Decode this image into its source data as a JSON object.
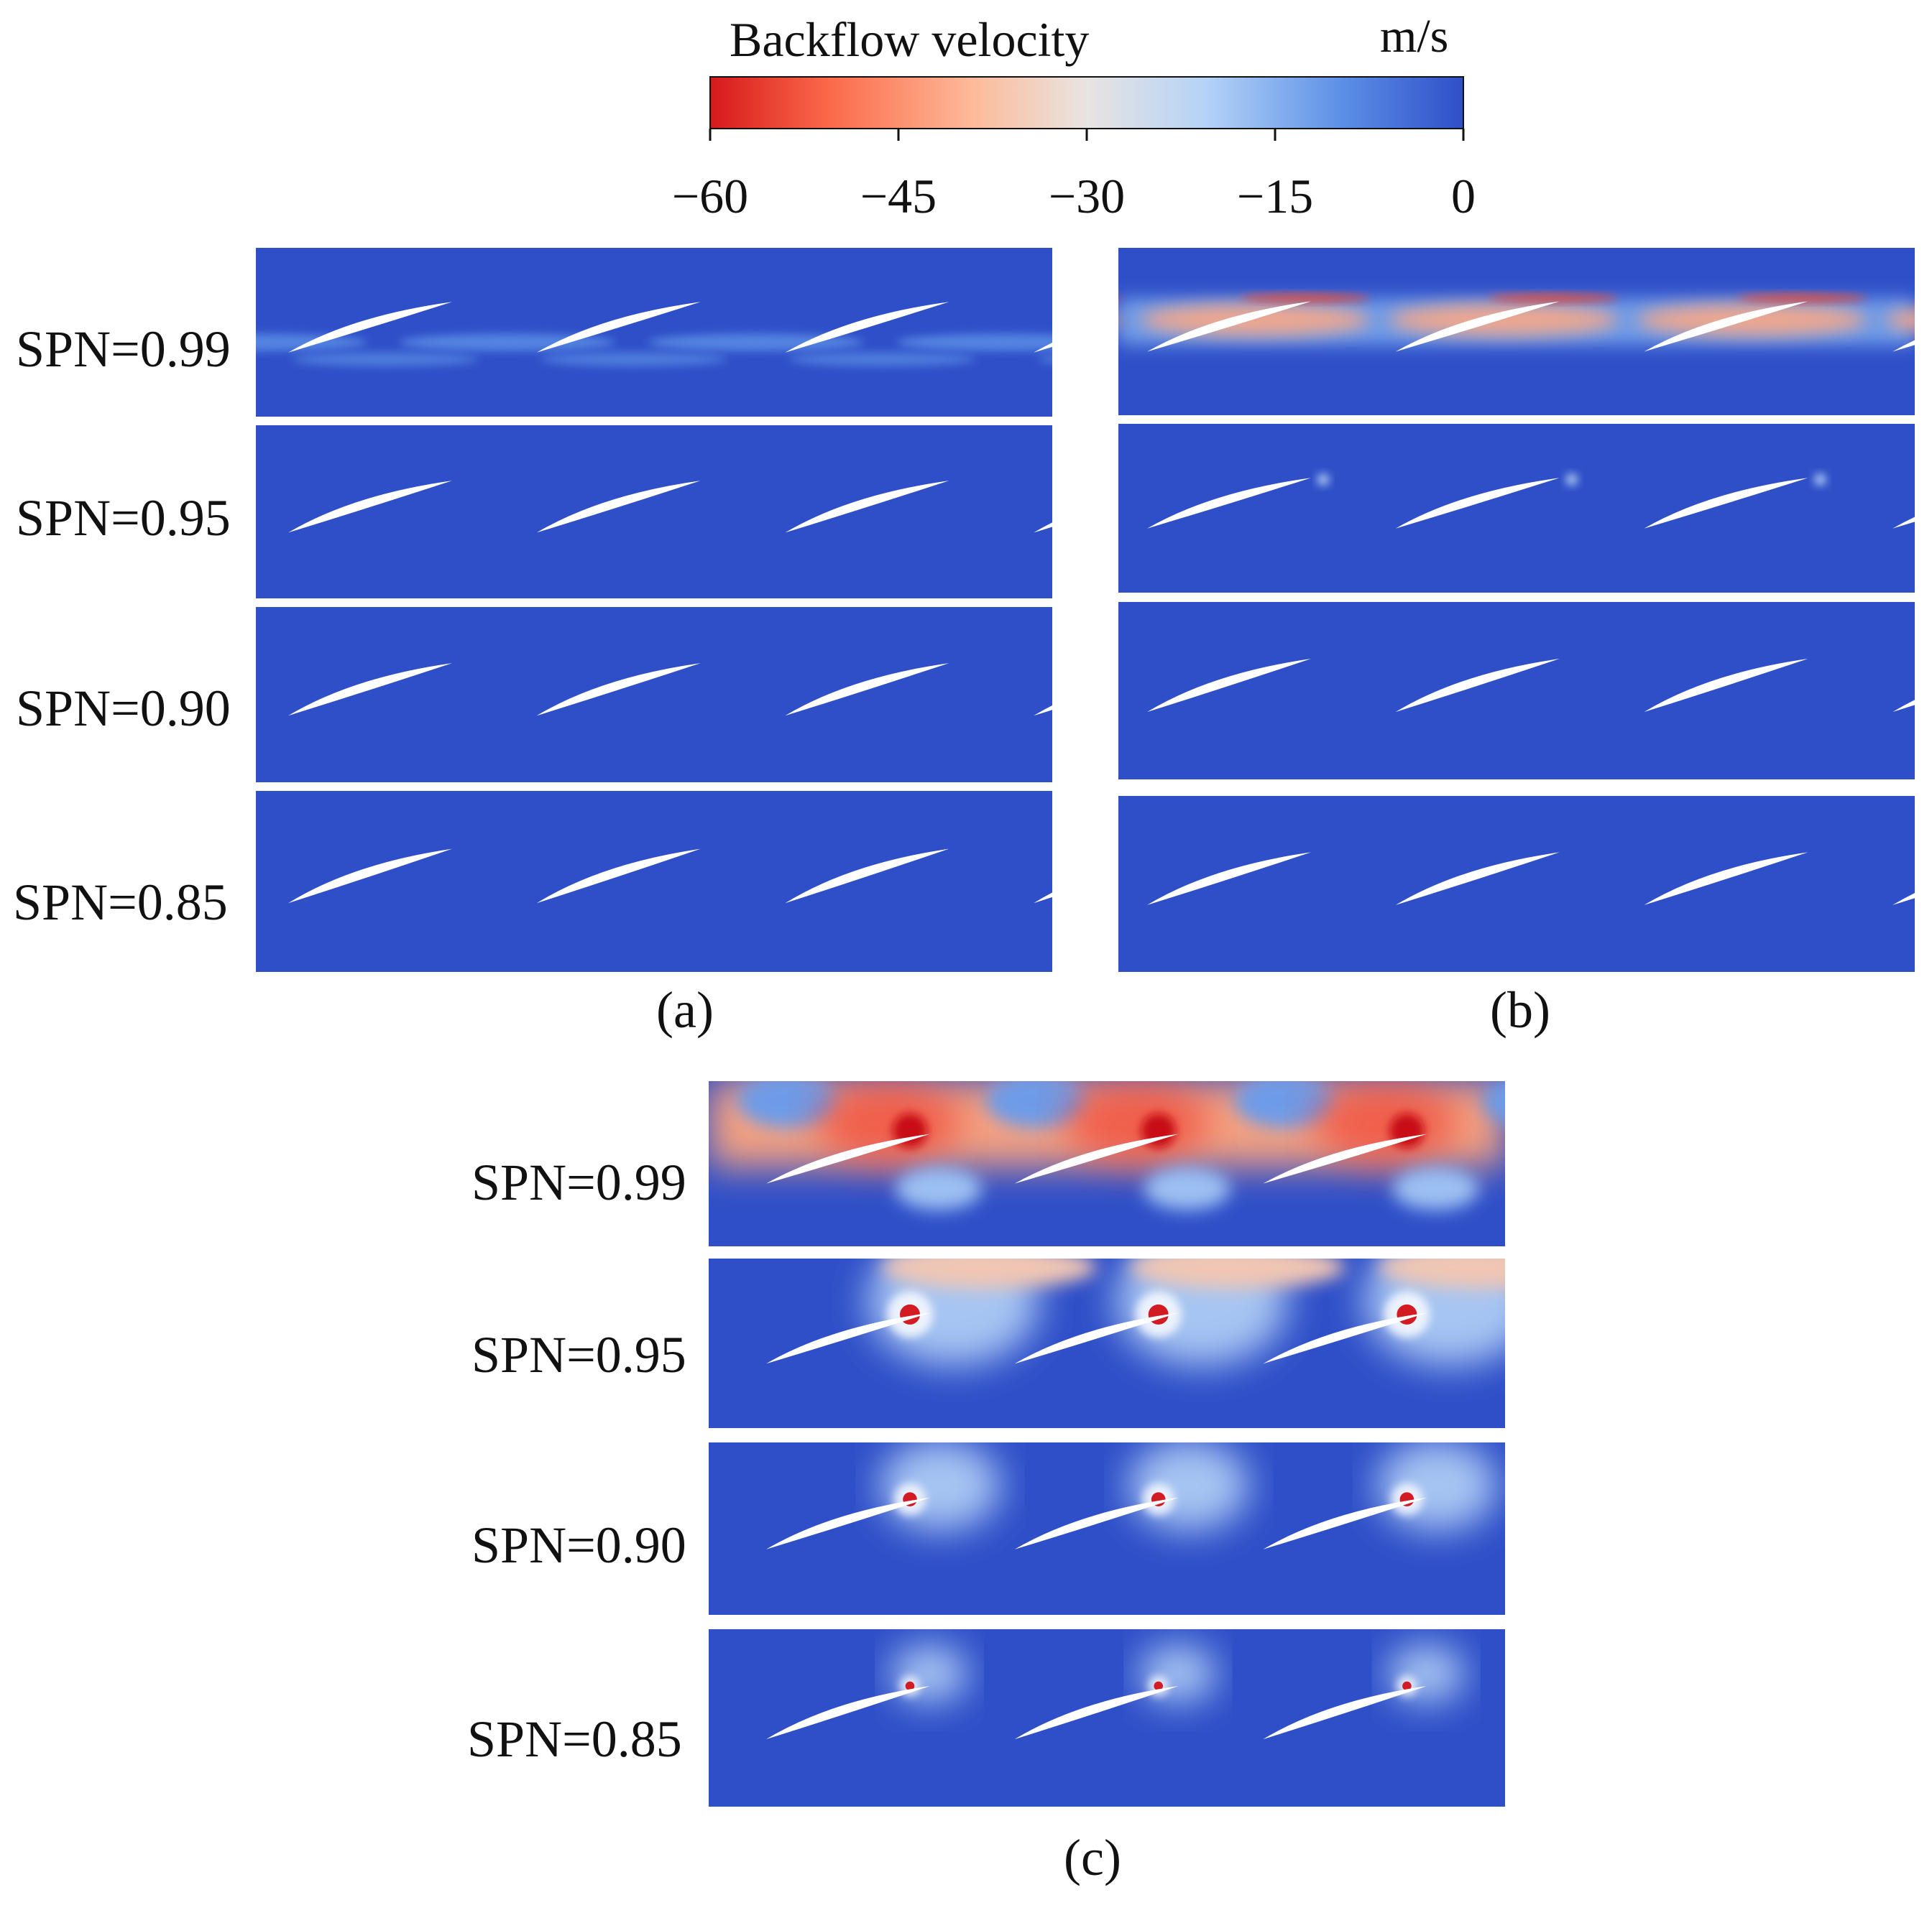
{
  "colorbar": {
    "title": "Backflow velocity",
    "unit": "m/s",
    "ticks": [
      "−60",
      "−45",
      "−30",
      "−15",
      "0"
    ],
    "range": [
      -60,
      0
    ],
    "colors": [
      "#d7191c",
      "#fb6a4a",
      "#fdbb9a",
      "#e8e4e2",
      "#b4d2f7",
      "#5b8fe6",
      "#2f4fc8"
    ]
  },
  "panels": [
    {
      "id": "a",
      "caption": "(a)",
      "rows": [
        {
          "label": "SPN=0.99",
          "level": "weak"
        },
        {
          "label": "SPN=0.95",
          "level": "none"
        },
        {
          "label": "SPN=0.90",
          "level": "none"
        },
        {
          "label": "SPN=0.85",
          "level": "none"
        }
      ]
    },
    {
      "id": "b",
      "caption": "(b)",
      "rows": [
        {
          "label": "",
          "level": "moderate"
        },
        {
          "label": "",
          "level": "tiny"
        },
        {
          "label": "",
          "level": "none"
        },
        {
          "label": "",
          "level": "none"
        }
      ]
    },
    {
      "id": "c",
      "caption": "(c)",
      "rows": [
        {
          "label": "SPN=0.99",
          "level": "strong"
        },
        {
          "label": "SPN=0.95",
          "level": "high"
        },
        {
          "label": "SPN=0.90",
          "level": "medium"
        },
        {
          "label": "SPN=0.85",
          "level": "low"
        }
      ]
    }
  ],
  "field_color": "#2f4fc8",
  "blade_color": "#ffffff"
}
